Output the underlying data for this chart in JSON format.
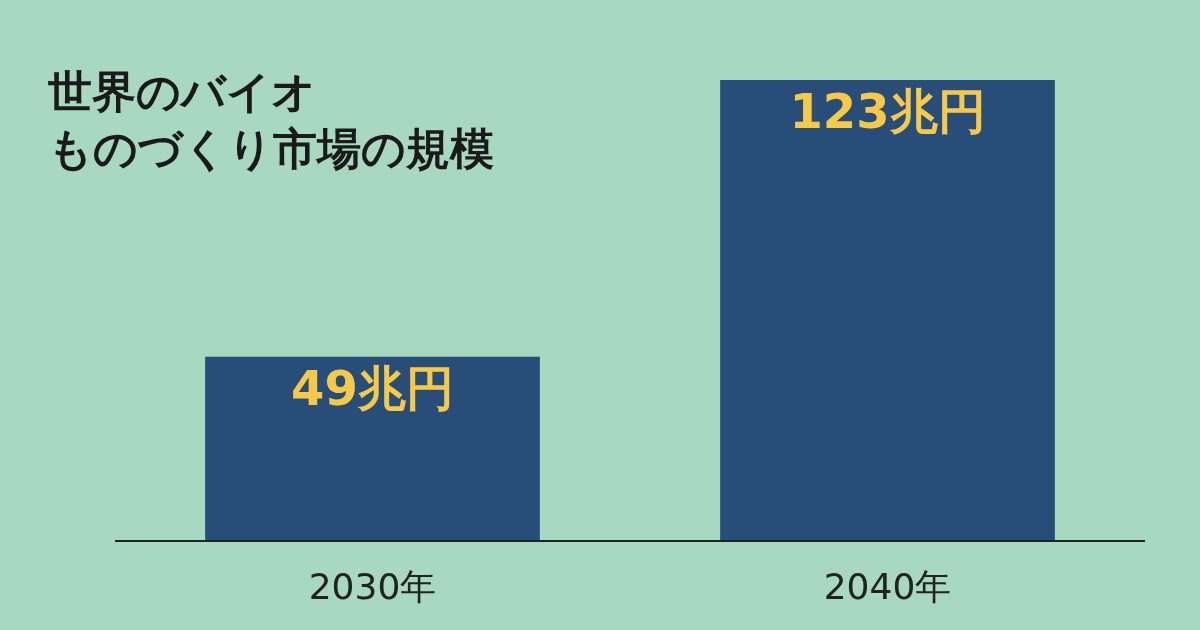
{
  "chart_data": {
    "type": "bar",
    "title": "世界のバイオ",
    "subtitle": "ものづくり市場の規模",
    "categories": [
      "2030年",
      "2040年"
    ],
    "values": [
      49,
      123
    ],
    "value_labels": [
      "49兆円",
      "123兆円"
    ],
    "color": "#284d78"
  }
}
